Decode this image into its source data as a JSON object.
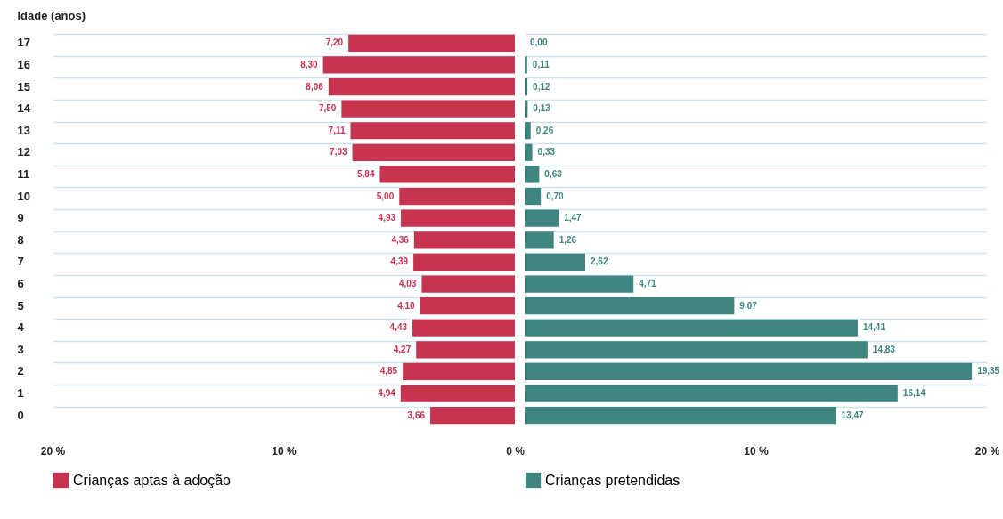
{
  "chart_data": [
    {
      "type": "bar",
      "orientation": "horizontal",
      "ylabel": "Idade (anos)",
      "categories": [
        "17",
        "16",
        "15",
        "14",
        "13",
        "12",
        "11",
        "10",
        "9",
        "8",
        "7",
        "6",
        "5",
        "4",
        "3",
        "2",
        "1",
        "0"
      ],
      "series": [
        {
          "name": "Crianças aptas à adoção",
          "color": "#c8334f",
          "values": [
            7.2,
            8.3,
            8.06,
            7.5,
            7.11,
            7.03,
            5.84,
            5.0,
            4.93,
            4.36,
            4.39,
            4.03,
            4.1,
            4.43,
            4.27,
            4.85,
            4.94,
            3.66
          ],
          "value_labels": [
            "7,20",
            "8,30",
            "8,06",
            "7,50",
            "7,11",
            "7,03",
            "5,84",
            "5,00",
            "4,93",
            "4,36",
            "4,39",
            "4,03",
            "4,10",
            "4,43",
            "4,27",
            "4,85",
            "4,94",
            "3,66"
          ]
        }
      ],
      "xlim": [
        20,
        0
      ],
      "xticks": [
        {
          "value": 20,
          "label": "20 %"
        },
        {
          "value": 10,
          "label": "10 %"
        },
        {
          "value": 0,
          "label": "0 %"
        }
      ],
      "grid": "y",
      "legend": "bottom"
    },
    {
      "type": "bar",
      "orientation": "horizontal",
      "categories": [
        "17",
        "16",
        "15",
        "14",
        "13",
        "12",
        "11",
        "10",
        "9",
        "8",
        "7",
        "6",
        "5",
        "4",
        "3",
        "2",
        "1",
        "0"
      ],
      "series": [
        {
          "name": "Crianças pretendidas",
          "color": "#3f8580",
          "values": [
            0.0,
            0.11,
            0.12,
            0.13,
            0.26,
            0.33,
            0.63,
            0.7,
            1.47,
            1.26,
            2.62,
            4.71,
            9.07,
            14.41,
            14.83,
            19.35,
            16.14,
            13.47
          ],
          "value_labels": [
            "0,00",
            "0,11",
            "0,12",
            "0,13",
            "0,26",
            "0,33",
            "0,63",
            "0,70",
            "1,47",
            "1,26",
            "2,62",
            "4,71",
            "9,07",
            "14,41",
            "14,83",
            "19,35",
            "16,14",
            "13,47"
          ]
        }
      ],
      "xlim": [
        0,
        20
      ],
      "xticks": [
        {
          "value": 10,
          "label": "10 %"
        },
        {
          "value": 20,
          "label": "20 %"
        }
      ],
      "grid": "y",
      "legend": "bottom",
      "tick_labels": "x"
    }
  ]
}
